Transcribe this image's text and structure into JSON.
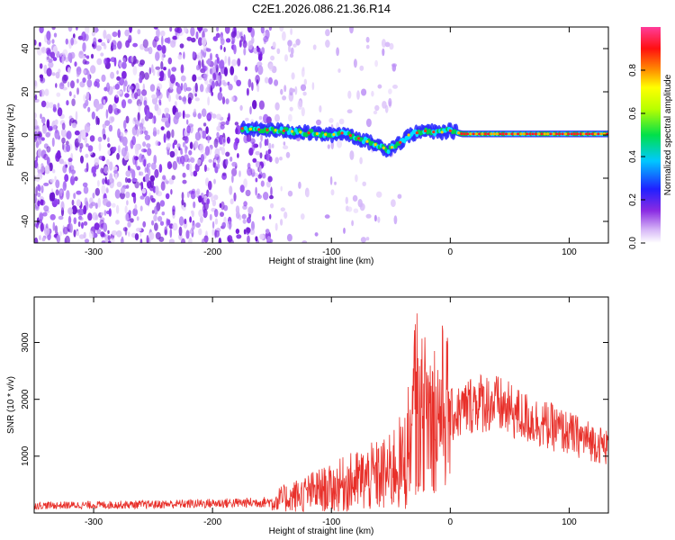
{
  "figure": {
    "title": "C2E1.2026.086.21.36.R14"
  },
  "chart_data": [
    {
      "type": "heatmap",
      "title": "C2E1.2026.086.21.36.R14",
      "xlabel": "Height of straight line (km)",
      "ylabel": "Frequency (Hz)",
      "xlim": [
        -350,
        133
      ],
      "ylim": [
        -50,
        50
      ],
      "xticks": [
        -300,
        -200,
        -100,
        0,
        100
      ],
      "xtick_labels": [
        "-300",
        "-200",
        "-100",
        "0",
        "100"
      ],
      "yticks": [
        -40,
        -20,
        0,
        20,
        40
      ],
      "ytick_labels": [
        "-40",
        "-20",
        "0",
        "20",
        "40"
      ],
      "colormap": "rainbow (purple-blue-cyan-green-yellow-red-magenta)",
      "colorbar": {
        "label": "Normalized spectral amplitude",
        "range": [
          0,
          1
        ],
        "ticks": [
          0.0,
          0.2,
          0.4,
          0.6,
          0.8
        ],
        "tick_labels": [
          "0.0",
          "0.2",
          "0.4",
          "0.6",
          "0.8"
        ]
      },
      "signal_track": {
        "description": "Doppler carrier line frequency vs height",
        "x": [
          -175,
          -160,
          -140,
          -120,
          -100,
          -90,
          -80,
          -70,
          -60,
          -52,
          -45,
          -40,
          -35,
          -28,
          -20,
          -10,
          0,
          10,
          20,
          40,
          60,
          80,
          100,
          133
        ],
        "y": [
          3,
          2.5,
          2,
          1,
          0,
          1,
          -1,
          -3,
          -5,
          -7,
          -4,
          -3,
          0,
          1,
          2,
          1,
          2,
          0.5,
          0.5,
          0.5,
          0.5,
          0.5,
          0.5,
          0.5
        ]
      }
    },
    {
      "type": "line",
      "xlabel": "Height of straight line (km)",
      "ylabel": "SNR (10 * v/v)",
      "xlim": [
        -350,
        133
      ],
      "ylim": [
        0,
        3800
      ],
      "xticks": [
        -300,
        -200,
        -100,
        0,
        100
      ],
      "xtick_labels": [
        "-300",
        "-200",
        "-100",
        "0",
        "100"
      ],
      "yticks": [
        1000,
        2000,
        3000
      ],
      "ytick_labels": [
        "1000",
        "2000",
        "3000"
      ],
      "series": [
        {
          "name": "SNR",
          "color": "#e8302a",
          "x": [
            -350,
            -300,
            -250,
            -200,
            -170,
            -150,
            -130,
            -120,
            -110,
            -100,
            -90,
            -80,
            -70,
            -60,
            -50,
            -45,
            -40,
            -35,
            -32,
            -30,
            -25,
            -20,
            -15,
            -10,
            -5,
            0,
            10,
            20,
            30,
            40,
            60,
            80,
            100,
            120,
            133
          ],
          "y": [
            130,
            140,
            150,
            170,
            180,
            200,
            300,
            350,
            400,
            420,
            500,
            550,
            600,
            650,
            700,
            900,
            800,
            1200,
            1300,
            1500,
            1700,
            1800,
            1700,
            1800,
            1900,
            1700,
            1800,
            1950,
            1950,
            1900,
            1700,
            1550,
            1400,
            1250,
            1150
          ]
        }
      ]
    }
  ]
}
